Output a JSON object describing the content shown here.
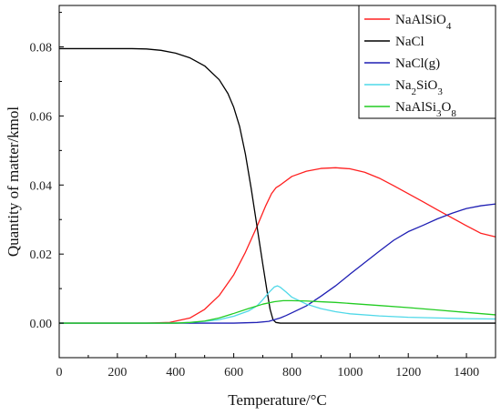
{
  "chart_data": {
    "type": "line",
    "xlabel": "Temperature/°C",
    "ylabel": "Quantity of matter/kmol",
    "xlim": [
      0,
      1500
    ],
    "ylim": [
      -0.01,
      0.092
    ],
    "xticks": [
      0,
      200,
      400,
      600,
      800,
      1000,
      1200,
      1400
    ],
    "yticks": [
      0.0,
      0.02,
      0.04,
      0.06,
      0.08
    ],
    "xtick_labels": [
      "0",
      "200",
      "400",
      "600",
      "800",
      "1000",
      "1200",
      "1400"
    ],
    "ytick_labels": [
      "0.00",
      "0.02",
      "0.04",
      "0.06",
      "0.08"
    ],
    "grid": false,
    "legend_position": "top-right",
    "series": [
      {
        "name": "NaAlSiO4",
        "label_parts": [
          [
            "NaAlSiO",
            "base"
          ],
          [
            "4",
            "sub"
          ]
        ],
        "color": "#ff2020",
        "x": [
          0,
          300,
          380,
          450,
          500,
          550,
          600,
          640,
          680,
          710,
          730,
          745,
          760,
          800,
          850,
          900,
          950,
          1000,
          1050,
          1100,
          1150,
          1200,
          1250,
          1300,
          1350,
          1400,
          1450,
          1500
        ],
        "y": [
          0,
          0,
          0.0002,
          0.0015,
          0.004,
          0.008,
          0.014,
          0.0205,
          0.028,
          0.034,
          0.0375,
          0.0392,
          0.04,
          0.0425,
          0.044,
          0.0448,
          0.045,
          0.0447,
          0.0437,
          0.042,
          0.0398,
          0.0375,
          0.0352,
          0.0328,
          0.0305,
          0.0282,
          0.026,
          0.025
        ]
      },
      {
        "name": "NaCl",
        "label_parts": [
          [
            "NaCl",
            "base"
          ]
        ],
        "color": "#000000",
        "x": [
          0,
          250,
          300,
          350,
          400,
          450,
          500,
          550,
          580,
          600,
          620,
          640,
          660,
          680,
          700,
          715,
          725,
          735,
          745,
          760,
          800,
          1500
        ],
        "y": [
          0.0795,
          0.0795,
          0.0794,
          0.079,
          0.0782,
          0.0768,
          0.0745,
          0.0705,
          0.0665,
          0.0625,
          0.057,
          0.049,
          0.039,
          0.028,
          0.017,
          0.009,
          0.004,
          0.001,
          0.0002,
          0,
          0,
          0
        ]
      },
      {
        "name": "NaCl(g)",
        "label_parts": [
          [
            "NaCl(g)",
            "base"
          ]
        ],
        "color": "#1f1fb4",
        "x": [
          0,
          500,
          600,
          680,
          720,
          740,
          760,
          780,
          800,
          850,
          900,
          950,
          1000,
          1050,
          1100,
          1150,
          1200,
          1250,
          1300,
          1350,
          1400,
          1450,
          1500
        ],
        "y": [
          0,
          0,
          0,
          0.0002,
          0.0005,
          0.001,
          0.0015,
          0.0022,
          0.003,
          0.005,
          0.0078,
          0.0108,
          0.0142,
          0.0175,
          0.0208,
          0.024,
          0.0265,
          0.0283,
          0.0302,
          0.0318,
          0.0332,
          0.034,
          0.0345
        ]
      },
      {
        "name": "Na2SiO3",
        "label_parts": [
          [
            "Na",
            "base"
          ],
          [
            "2",
            "sub"
          ],
          [
            "SiO",
            "base"
          ],
          [
            "3",
            "sub"
          ]
        ],
        "color": "#4fd8e8",
        "x": [
          0,
          380,
          450,
          500,
          550,
          600,
          650,
          680,
          700,
          720,
          740,
          750,
          760,
          780,
          800,
          850,
          900,
          950,
          1000,
          1100,
          1200,
          1300,
          1400,
          1500
        ],
        "y": [
          0,
          0,
          0.0002,
          0.0005,
          0.001,
          0.002,
          0.0035,
          0.005,
          0.0068,
          0.0088,
          0.0105,
          0.0108,
          0.0104,
          0.009,
          0.0075,
          0.0055,
          0.0042,
          0.0033,
          0.0027,
          0.0021,
          0.0017,
          0.0015,
          0.0013,
          0.0012
        ]
      },
      {
        "name": "NaAlSi3O8",
        "label_parts": [
          [
            "NaAlSi",
            "base"
          ],
          [
            "3",
            "sub"
          ],
          [
            "O",
            "base"
          ],
          [
            "8",
            "sub"
          ]
        ],
        "color": "#22cc22",
        "x": [
          0,
          400,
          450,
          500,
          550,
          600,
          650,
          700,
          740,
          770,
          800,
          850,
          900,
          950,
          1000,
          1100,
          1200,
          1300,
          1400,
          1500
        ],
        "y": [
          0,
          0,
          0.0002,
          0.0006,
          0.0015,
          0.0028,
          0.0042,
          0.0055,
          0.0062,
          0.0065,
          0.0065,
          0.0064,
          0.0062,
          0.006,
          0.0057,
          0.0051,
          0.0045,
          0.0038,
          0.0031,
          0.0024
        ]
      }
    ]
  }
}
